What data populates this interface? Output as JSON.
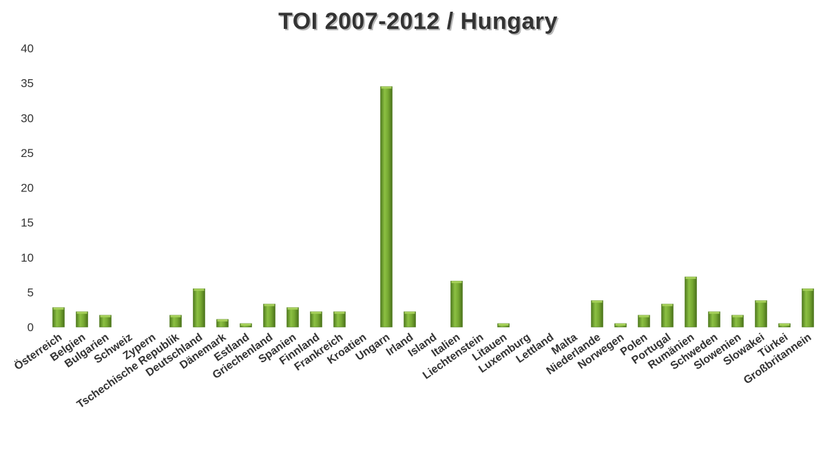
{
  "chart_data": {
    "type": "bar",
    "title": "TOI 2007-2012 / Hungary",
    "xlabel": "",
    "ylabel": "",
    "ylim": [
      0,
      40
    ],
    "yticks": [
      "0",
      "5",
      "10",
      "15",
      "20",
      "25",
      "30",
      "35",
      "40"
    ],
    "grid": false,
    "legend": "none",
    "colors": {
      "bar": "#76a832",
      "bar_light": "#a6d05a",
      "bar_dark": "#4f7a1e",
      "text": "#333333"
    },
    "categories": [
      "Österreich",
      "Belgien",
      "Bulgarien",
      "Schweiz",
      "Zypern",
      "Tschechische Republik",
      "Deutschland",
      "Dänemark",
      "Estland",
      "Griechenland",
      "Spanien",
      "Finnland",
      "Frankreich",
      "Kroatien",
      "Ungarn",
      "Irland",
      "Island",
      "Italien",
      "Liechtenstein",
      "Litauen",
      "Luxemburg",
      "Lettland",
      "Malta",
      "Niederlande",
      "Norwegen",
      "Polen",
      "Portugal",
      "Rumänien",
      "Schweden",
      "Slowenien",
      "Slowakei",
      "Türkei",
      "Großbritannein"
    ],
    "values": [
      2.8,
      2.2,
      1.7,
      0,
      0,
      1.7,
      5.5,
      1.1,
      0.5,
      3.3,
      2.8,
      2.2,
      2.2,
      0,
      34.5,
      2.2,
      0,
      6.6,
      0,
      0.5,
      0,
      0,
      0,
      3.8,
      0.5,
      1.7,
      3.3,
      7.2,
      2.2,
      1.7,
      3.8,
      0.5,
      5.5
    ]
  }
}
